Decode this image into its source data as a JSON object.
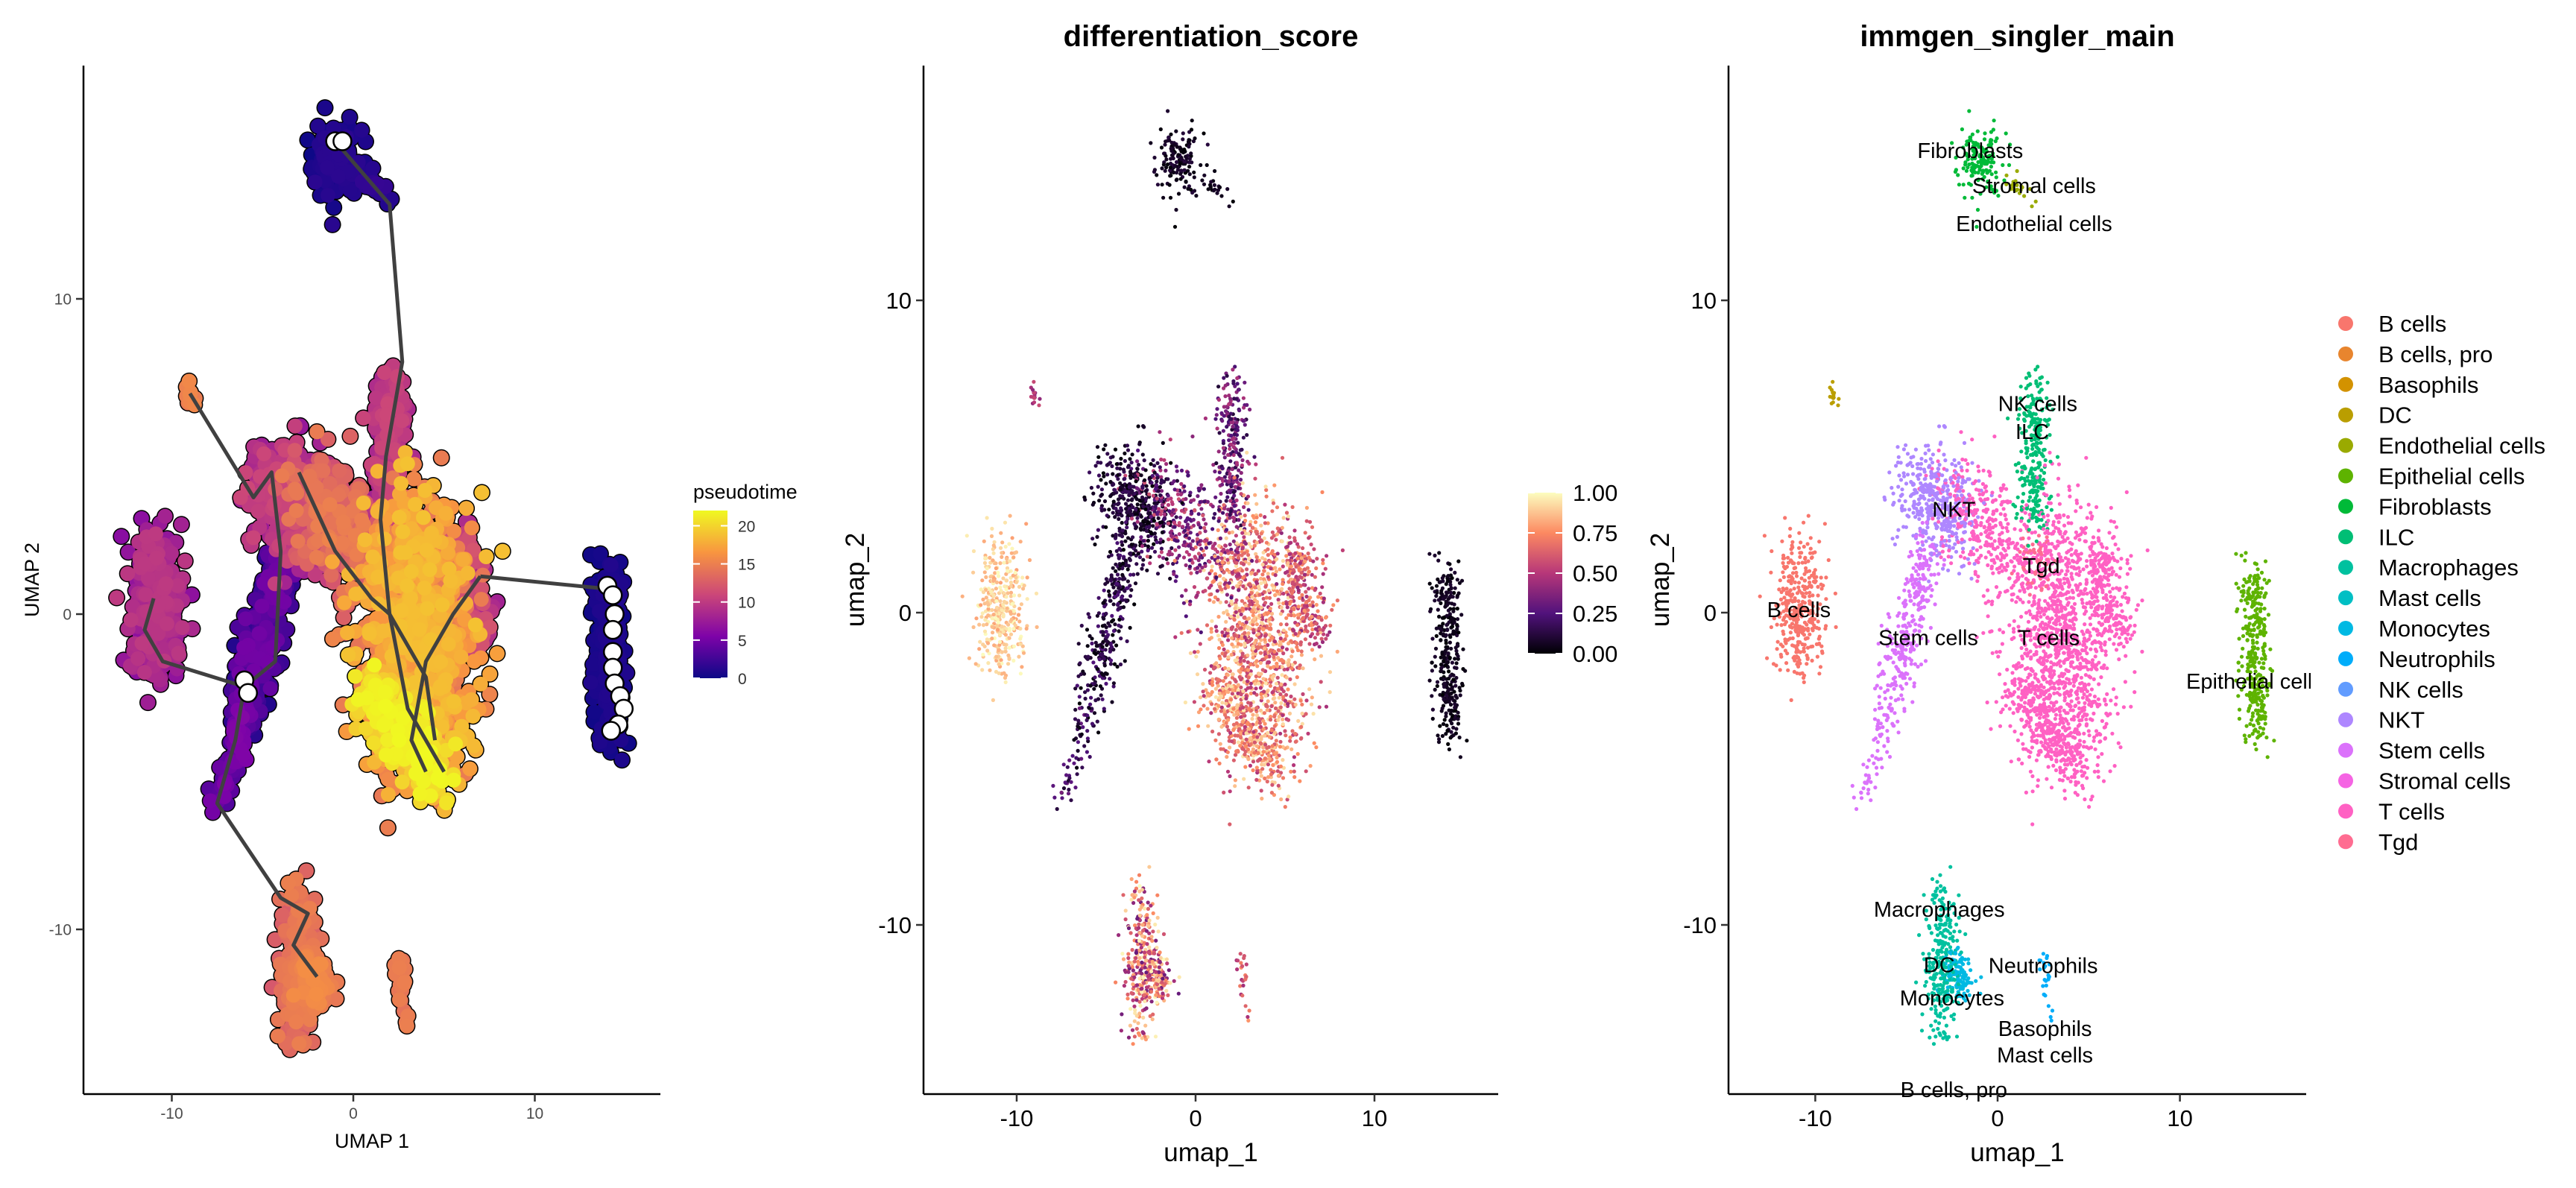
{
  "chart_data": [
    {
      "type": "scatter",
      "title": "",
      "xlabel": "UMAP 1",
      "ylabel": "UMAP 2",
      "xlim": [
        -14.8,
        17
      ],
      "ylim": [
        -15.2,
        17.4
      ],
      "xticks": [
        "-10",
        "0",
        "10"
      ],
      "yticks": [
        "-10",
        "0",
        "10"
      ],
      "xtick_values": [
        -10,
        0,
        10
      ],
      "ytick_values": [
        -10,
        0,
        10
      ],
      "grid": false,
      "color_by": "pseudotime",
      "legend": {
        "title": "pseudotime",
        "placement": "right",
        "ticks": [
          "0",
          "5",
          "10",
          "15",
          "20"
        ],
        "tick_values": [
          0,
          5,
          10,
          15,
          20
        ],
        "range": [
          0,
          22
        ],
        "palette": [
          "#0d0887",
          "#7e03a8",
          "#cc4778",
          "#f89540",
          "#f0f921"
        ]
      },
      "trajectory": [
        [
          [
            -1,
            15
          ],
          [
            0.5,
            14
          ],
          [
            2,
            13
          ],
          [
            2.7,
            8
          ],
          [
            1.8,
            5
          ],
          [
            1.5,
            3
          ],
          [
            2,
            0
          ],
          [
            3,
            -3
          ],
          [
            5,
            -5
          ]
        ],
        [
          [
            -9,
            7
          ],
          [
            -5.5,
            3.7
          ],
          [
            -4.5,
            4.5
          ],
          [
            -4,
            2
          ],
          [
            -4.3,
            -1.5
          ],
          [
            -6,
            -2.3
          ]
        ],
        [
          [
            -11,
            0.5
          ],
          [
            -11.5,
            -0.5
          ],
          [
            -10.5,
            -1.5
          ],
          [
            -6,
            -2.3
          ]
        ],
        [
          [
            -6,
            -2.3
          ],
          [
            -6.5,
            -4
          ],
          [
            -7.5,
            -6
          ],
          [
            -4,
            -9
          ],
          [
            -2.5,
            -9.5
          ],
          [
            -3.3,
            -10.5
          ],
          [
            -2,
            -11.5
          ]
        ],
        [
          [
            7,
            1.2
          ],
          [
            14,
            0.8
          ]
        ],
        [
          [
            -3,
            4.5
          ],
          [
            -1,
            2
          ],
          [
            1,
            0.5
          ],
          [
            2,
            0
          ],
          [
            4,
            -2
          ],
          [
            4.5,
            -4
          ]
        ],
        [
          [
            7,
            1.2
          ],
          [
            5.5,
            0
          ],
          [
            4,
            -1.5
          ],
          [
            3.2,
            -4
          ],
          [
            4,
            -5
          ]
        ]
      ],
      "root_nodes": [
        [
          -1,
          15
        ],
        [
          -0.6,
          15
        ],
        [
          -6,
          -2.1
        ],
        [
          -5.8,
          -2.5
        ],
        [
          14,
          0.9
        ],
        [
          14.3,
          0.6
        ],
        [
          14.4,
          0
        ],
        [
          14.3,
          -0.5
        ],
        [
          14.3,
          -1.2
        ],
        [
          14.3,
          -1.7
        ],
        [
          14.4,
          -2.2
        ],
        [
          14.7,
          -2.6
        ],
        [
          14.9,
          -3
        ],
        [
          14.6,
          -3.5
        ],
        [
          14.2,
          -3.7
        ]
      ]
    },
    {
      "type": "scatter",
      "title": "differentiation_score",
      "xlabel": "umap_1",
      "ylabel": "umap_2",
      "xlim": [
        -15,
        17
      ],
      "ylim": [
        -15.2,
        17.4
      ],
      "xticks": [
        "-10",
        "0",
        "10"
      ],
      "yticks": [
        "-10",
        "0",
        "10"
      ],
      "xtick_values": [
        -10,
        0,
        10
      ],
      "ytick_values": [
        -10,
        0,
        10
      ],
      "grid": false,
      "color_by": "differentiation_score",
      "legend": {
        "title": "",
        "placement": "right",
        "ticks": [
          "0.00",
          "0.25",
          "0.50",
          "0.75",
          "1.00"
        ],
        "tick_values": [
          0,
          0.25,
          0.5,
          0.75,
          1
        ],
        "range": [
          0,
          1
        ],
        "palette": [
          "#000004",
          "#51127c",
          "#b73779",
          "#fc8961",
          "#fcfdbf"
        ]
      }
    },
    {
      "type": "scatter",
      "title": "immgen_singler_main",
      "xlabel": "umap_1",
      "ylabel": "umap_2",
      "xlim": [
        -15,
        17
      ],
      "ylim": [
        -15.2,
        17.4
      ],
      "xticks": [
        "-10",
        "0",
        "10"
      ],
      "yticks": [
        "-10",
        "0",
        "10"
      ],
      "xtick_values": [
        -10,
        0,
        10
      ],
      "ytick_values": [
        -10,
        0,
        10
      ],
      "grid": false,
      "color_by": "cell_type",
      "legend": {
        "title": "",
        "placement": "right",
        "entries": [
          {
            "name": "B cells",
            "color": "#F8766D"
          },
          {
            "name": "B cells, pro",
            "color": "#E8852E"
          },
          {
            "name": "Basophils",
            "color": "#D39200"
          },
          {
            "name": "DC",
            "color": "#BA9E00"
          },
          {
            "name": "Endothelial cells",
            "color": "#9AAA00"
          },
          {
            "name": "Epithelial cells",
            "color": "#5EB300"
          },
          {
            "name": "Fibroblasts",
            "color": "#00BA38"
          },
          {
            "name": "ILC",
            "color": "#00BE75"
          },
          {
            "name": "Macrophages",
            "color": "#00C19F"
          },
          {
            "name": "Mast cells",
            "color": "#00BFC4"
          },
          {
            "name": "Monocytes",
            "color": "#00B9E3"
          },
          {
            "name": "Neutrophils",
            "color": "#00ADFA"
          },
          {
            "name": "NK cells",
            "color": "#619CFF"
          },
          {
            "name": "NKT",
            "color": "#AE87FF"
          },
          {
            "name": "Stem cells",
            "color": "#DB72FB"
          },
          {
            "name": "Stromal cells",
            "color": "#F564E3"
          },
          {
            "name": "T cells",
            "color": "#FF61C3"
          },
          {
            "name": "Tgd",
            "color": "#FF6C91"
          }
        ]
      },
      "labels": [
        {
          "text": "Fibroblasts",
          "x": -1.5,
          "y": 14.8
        },
        {
          "text": "Stromal cells",
          "x": 2.0,
          "y": 14.1
        },
        {
          "text": "Endothelial cells",
          "x": 2.0,
          "y": 13.3
        },
        {
          "text": "NK cells",
          "x": 2.2,
          "y": 6.7
        },
        {
          "text": "ILC",
          "x": 1.9,
          "y": 5.8
        },
        {
          "text": "NKT",
          "x": -2.4,
          "y": 3.3
        },
        {
          "text": "Tgd",
          "x": 2.4,
          "y": 1.5
        },
        {
          "text": "B cells",
          "x": -10.9,
          "y": 0.1
        },
        {
          "text": "Stem cells",
          "x": -3.8,
          "y": -0.8
        },
        {
          "text": "T cells",
          "x": 2.8,
          "y": -0.8
        },
        {
          "text": "Epithelial cells",
          "x": 14.1,
          "y": -2.2
        },
        {
          "text": "Macrophages",
          "x": -3.2,
          "y": -9.5
        },
        {
          "text": "Neutrophils",
          "x": 2.5,
          "y": -11.3
        },
        {
          "text": "Monocytes",
          "x": -2.5,
          "y": -11.5
        },
        {
          "text": "DC",
          "x": -3.2,
          "y": -11.7
        },
        {
          "text": "Basophils",
          "x": 2.6,
          "y": -12.9
        },
        {
          "text": "Mast cells",
          "x": 2.6,
          "y": -12.9
        },
        {
          "text": "B cells, pro",
          "x": -2.4,
          "y": -13.6
        }
      ]
    }
  ],
  "clusters": [
    {
      "from": [
        -1,
        14.6
      ],
      "to": [
        -0.6,
        14.4
      ],
      "sd": 0.55,
      "n": 150,
      "cell_type": "Fibroblasts",
      "pseudotime": [
        0,
        1.5
      ],
      "differentiation_score": [
        0,
        0.12
      ]
    },
    {
      "from": [
        0.5,
        13.9
      ],
      "to": [
        2,
        13.2
      ],
      "sd": 0.15,
      "n": 20,
      "cell_type": "Endothelial cells",
      "pseudotime": [
        1,
        2
      ],
      "differentiation_score": [
        0,
        0.1
      ]
    },
    {
      "from": [
        -9.1,
        7.1
      ],
      "to": [
        -8.9,
        6.8
      ],
      "sd": 0.15,
      "n": 15,
      "cell_type": "DC",
      "pseudotime": [
        14,
        16
      ],
      "differentiation_score": [
        0.4,
        0.6
      ]
    },
    {
      "from": [
        -11,
        1.8
      ],
      "to": [
        -10.8,
        -1.5
      ],
      "sd": 0.7,
      "n": 350,
      "cell_type": "B cells",
      "pseudotime": [
        6,
        10
      ],
      "differentiation_score": [
        0.8,
        1
      ]
    },
    {
      "from": [
        -4.5,
        4
      ],
      "to": [
        -2.2,
        3
      ],
      "sd": 0.85,
      "n": 420,
      "cell_type": "NKT",
      "pseudotime": [
        7,
        11
      ],
      "differentiation_score": [
        0,
        0.2
      ]
    },
    {
      "from": [
        -3.8,
        2
      ],
      "to": [
        -6,
        -3
      ],
      "sd": 0.5,
      "n": 300,
      "cell_type": "Stem cells",
      "pseudotime": [
        1,
        5
      ],
      "differentiation_score": [
        0,
        0.25
      ]
    },
    {
      "from": [
        -6,
        -3
      ],
      "to": [
        -7.5,
        -6
      ],
      "sd": 0.3,
      "n": 60,
      "cell_type": "Stem cells",
      "pseudotime": [
        3,
        6
      ],
      "differentiation_score": [
        0,
        0.35
      ]
    },
    {
      "from": [
        2,
        7.2
      ],
      "to": [
        2,
        3
      ],
      "sd": 0.45,
      "n": 260,
      "cell_type": "ILC",
      "pseudotime": [
        8,
        11
      ],
      "differentiation_score": [
        0.1,
        0.5
      ]
    },
    {
      "from": [
        -2.5,
        4
      ],
      "to": [
        1,
        1.5
      ],
      "sd": 0.8,
      "n": 320,
      "cell_type": "T cells",
      "pseudotime": [
        11,
        15
      ],
      "differentiation_score": [
        0.2,
        0.6
      ]
    },
    {
      "from": [
        3,
        2
      ],
      "to": [
        3.8,
        -3.5
      ],
      "sd": 1.45,
      "n": 1200,
      "cell_type": "T cells",
      "pseudotime": [
        14,
        19
      ],
      "differentiation_score": [
        0.45,
        0.95
      ]
    },
    {
      "from": [
        5.5,
        2
      ],
      "to": [
        6.5,
        -0.5
      ],
      "sd": 0.6,
      "n": 220,
      "cell_type": "T cells",
      "pseudotime": [
        8,
        12
      ],
      "differentiation_score": [
        0.4,
        0.8
      ]
    },
    {
      "from": [
        1,
        -2.5
      ],
      "to": [
        4.6,
        -5
      ],
      "sd": 0.55,
      "n": 300,
      "cell_type": "T cells",
      "pseudotime": [
        19,
        22
      ],
      "differentiation_score": [
        0.55,
        0.95
      ]
    },
    {
      "from": [
        1.5,
        1.8
      ],
      "to": [
        2.8,
        1.4
      ],
      "sd": 0.4,
      "n": 60,
      "cell_type": "Tgd",
      "pseudotime": [
        12,
        15
      ],
      "differentiation_score": [
        0.3,
        0.7
      ]
    },
    {
      "from": [
        14,
        1.5
      ],
      "to": [
        14.2,
        -4
      ],
      "sd": 0.35,
      "n": 320,
      "cell_type": "Epithelial cells",
      "pseudotime": [
        0,
        1
      ],
      "differentiation_score": [
        0,
        0.1
      ]
    },
    {
      "from": [
        -3,
        -9
      ],
      "to": [
        -3,
        -13.2
      ],
      "sd": 0.45,
      "n": 260,
      "cell_type": "Macrophages",
      "pseudotime": [
        12,
        15
      ],
      "differentiation_score": [
        0.3,
        1
      ]
    },
    {
      "from": [
        -2.6,
        -11.2
      ],
      "to": [
        -1.7,
        -12
      ],
      "sd": 0.35,
      "n": 110,
      "cell_type": "Monocytes",
      "pseudotime": [
        14,
        16
      ],
      "differentiation_score": [
        0.3,
        1
      ]
    },
    {
      "from": [
        2.5,
        -11
      ],
      "to": [
        2.9,
        -13
      ],
      "sd": 0.15,
      "n": 25,
      "cell_type": "Neutrophils",
      "pseudotime": [
        14,
        15
      ],
      "differentiation_score": [
        0.4,
        0.8
      ]
    }
  ]
}
